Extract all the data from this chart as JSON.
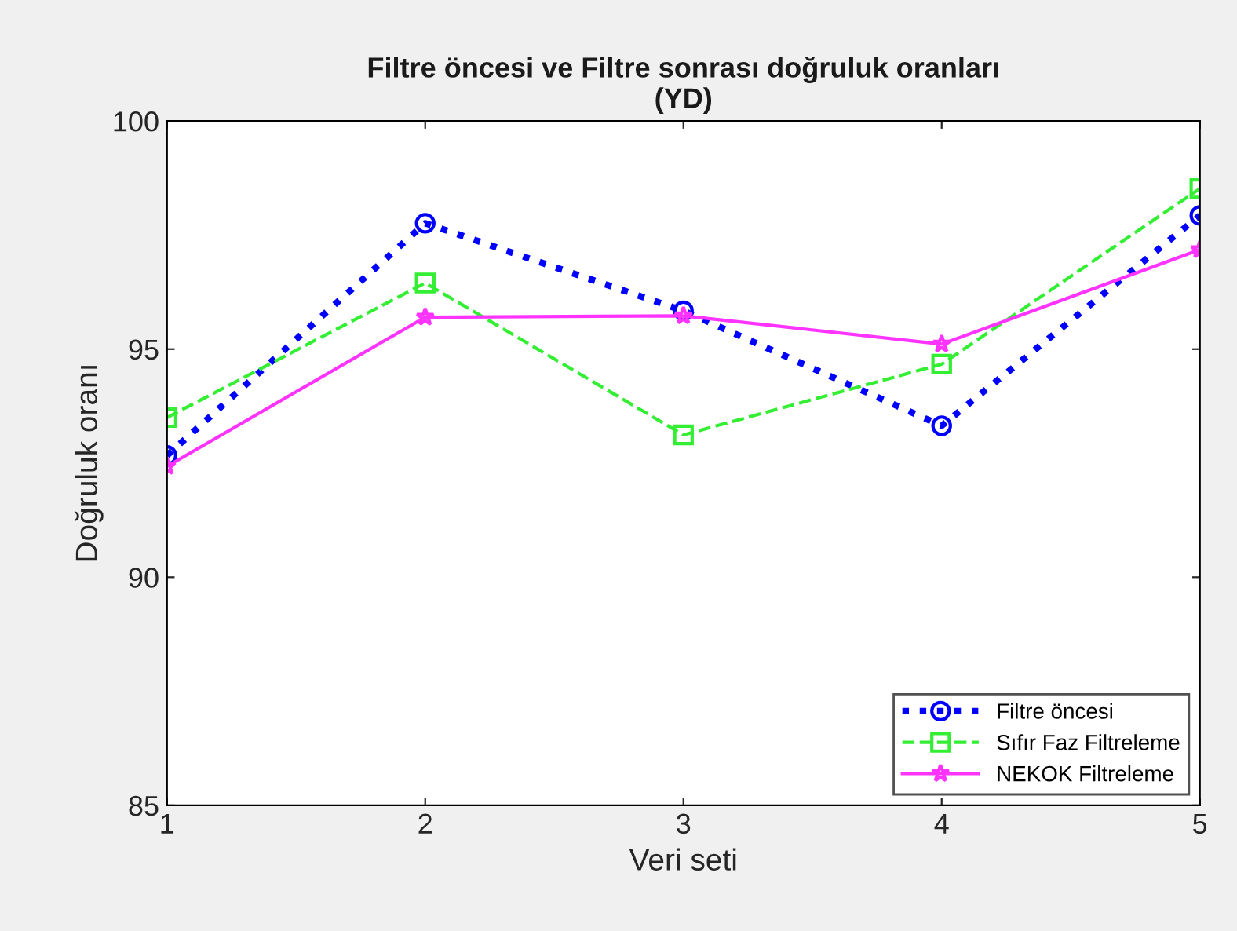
{
  "chart_data": {
    "type": "line",
    "title": "Filtre öncesi ve Filtre sonrası doğruluk oranları\n(YD)",
    "xlabel": "Veri seti",
    "ylabel": "Doğruluk oranı",
    "x": [
      1,
      2,
      3,
      4,
      5
    ],
    "xlim": [
      1,
      5
    ],
    "xticks": [
      1,
      2,
      3,
      4,
      5
    ],
    "ylim": [
      85,
      100
    ],
    "yticks": [
      85,
      90,
      95,
      100
    ],
    "grid": false,
    "legend": "bottom right",
    "series": [
      {
        "name": "Filtre öncesi",
        "color": "#0000ff",
        "marker": "circle",
        "line_style": "dotted",
        "values": [
          92.67,
          97.76,
          95.84,
          93.32,
          97.93
        ]
      },
      {
        "name": "Sıfır Faz Filtreleme",
        "color": "#33ee33",
        "marker": "square",
        "line_style": "dashed",
        "values": [
          93.5,
          96.45,
          93.12,
          94.67,
          98.52
        ]
      },
      {
        "name": "NEKOK Filtreleme",
        "color": "#ff33ff",
        "marker": "star",
        "line_style": "solid",
        "values": [
          92.43,
          95.7,
          95.73,
          95.11,
          97.18
        ]
      }
    ]
  }
}
